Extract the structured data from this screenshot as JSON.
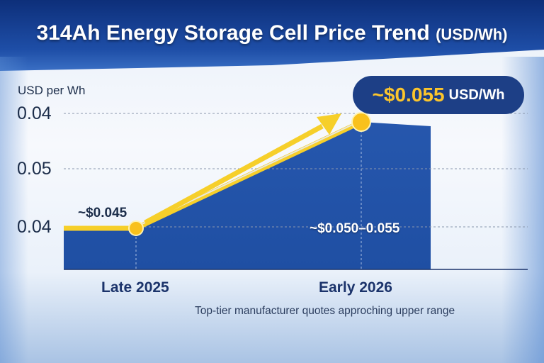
{
  "chart_data": {
    "type": "area",
    "title": "314Ah Energy Storage Cell Price Trend",
    "title_unit": "(USD/Wh)",
    "ylabel": "USD per Wh",
    "y_tick_labels": [
      "0.04",
      "0.05",
      "0.04"
    ],
    "categories": [
      "Late 2025",
      "Early 2026"
    ],
    "values": [
      0.045,
      0.055
    ],
    "data_labels": [
      "~$0.045",
      "~$0.050–0.055"
    ],
    "callout": {
      "value": "~$0.055",
      "unit": "USD/Wh"
    },
    "annotation": "Top-tier manufacturer quotes approching upper range",
    "grid": true,
    "colors": {
      "area": "#1f4fa3",
      "line": "#f6cf2a",
      "marker": "#f9c11c",
      "callout_bg": "#1d3f86",
      "header": "#1a47a0"
    }
  }
}
